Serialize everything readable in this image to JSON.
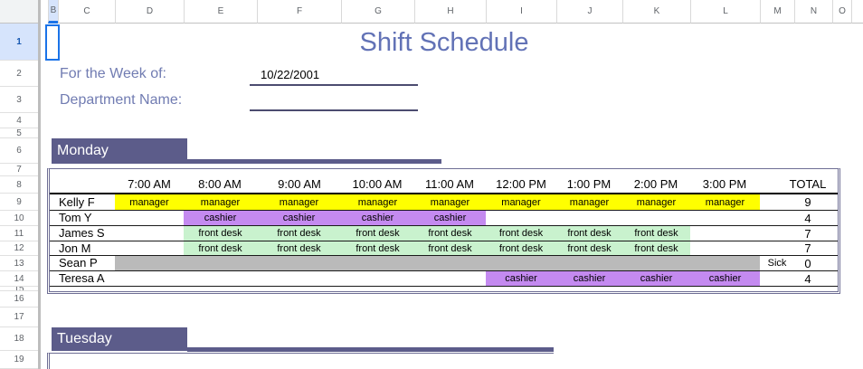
{
  "spreadsheet": {
    "columns": [
      "B",
      "C",
      "D",
      "E",
      "F",
      "G",
      "H",
      "I",
      "J",
      "K",
      "L",
      "M",
      "N",
      "O"
    ],
    "rows": [
      "1",
      "2",
      "3",
      "4",
      "5",
      "6",
      "7",
      "8",
      "9",
      "10",
      "11",
      "12",
      "13",
      "14",
      "15",
      "16",
      "17",
      "18",
      "19"
    ],
    "selected_row": "1",
    "selected_column": "B"
  },
  "header": {
    "title": "Shift Schedule",
    "week_label": "For the Week of:",
    "week_value": "10/22/2001",
    "department_label": "Department Name:",
    "department_value": ""
  },
  "monday": {
    "label": "Monday",
    "time_headers": [
      "7:00 AM",
      "8:00 AM",
      "9:00 AM",
      "10:00 AM",
      "11:00 AM",
      "12:00 PM",
      "1:00 PM",
      "2:00 PM",
      "3:00 PM"
    ],
    "total_header": "TOTAL",
    "rows": [
      {
        "name": "Kelly F",
        "role": "manager",
        "color": "#ffff00",
        "slots": [
          0,
          1,
          2,
          3,
          4,
          5,
          6,
          7,
          8
        ],
        "note": "",
        "total": "9"
      },
      {
        "name": "Tom Y",
        "role": "cashier",
        "color": "#c48af0",
        "slots": [
          1,
          2,
          3,
          4
        ],
        "note": "",
        "total": "4"
      },
      {
        "name": "James S",
        "role": "front desk",
        "color": "#c9f2ce",
        "slots": [
          1,
          2,
          3,
          4,
          5,
          6,
          7
        ],
        "note": "",
        "total": "7"
      },
      {
        "name": "Jon M",
        "role": "front desk",
        "color": "#c9f2ce",
        "slots": [
          1,
          2,
          3,
          4,
          5,
          6,
          7
        ],
        "note": "",
        "total": "7"
      },
      {
        "name": "Sean P",
        "role": "",
        "color": "#bababa",
        "slots": [
          0,
          1,
          2,
          3,
          4,
          5,
          6,
          7,
          8
        ],
        "note": "Sick",
        "total": "0"
      },
      {
        "name": "Teresa A",
        "role": "cashier",
        "color": "#c48af0",
        "slots": [
          5,
          6,
          7,
          8
        ],
        "note": "",
        "total": "4"
      }
    ]
  },
  "tuesday": {
    "label": "Tuesday"
  },
  "colors": {
    "day_band": "#5c5c8a",
    "table_border": "#6e6e94",
    "title_text": "#6272b6",
    "label_text": "#717cb2",
    "underline": "#4c4c70",
    "selection": "#1a73e8",
    "selected_row_bg": "#d6e4fc",
    "role_yellow": "#ffff00",
    "role_purple": "#c48af0",
    "role_green": "#c9f2ce",
    "unavailable_gray": "#bababa"
  }
}
